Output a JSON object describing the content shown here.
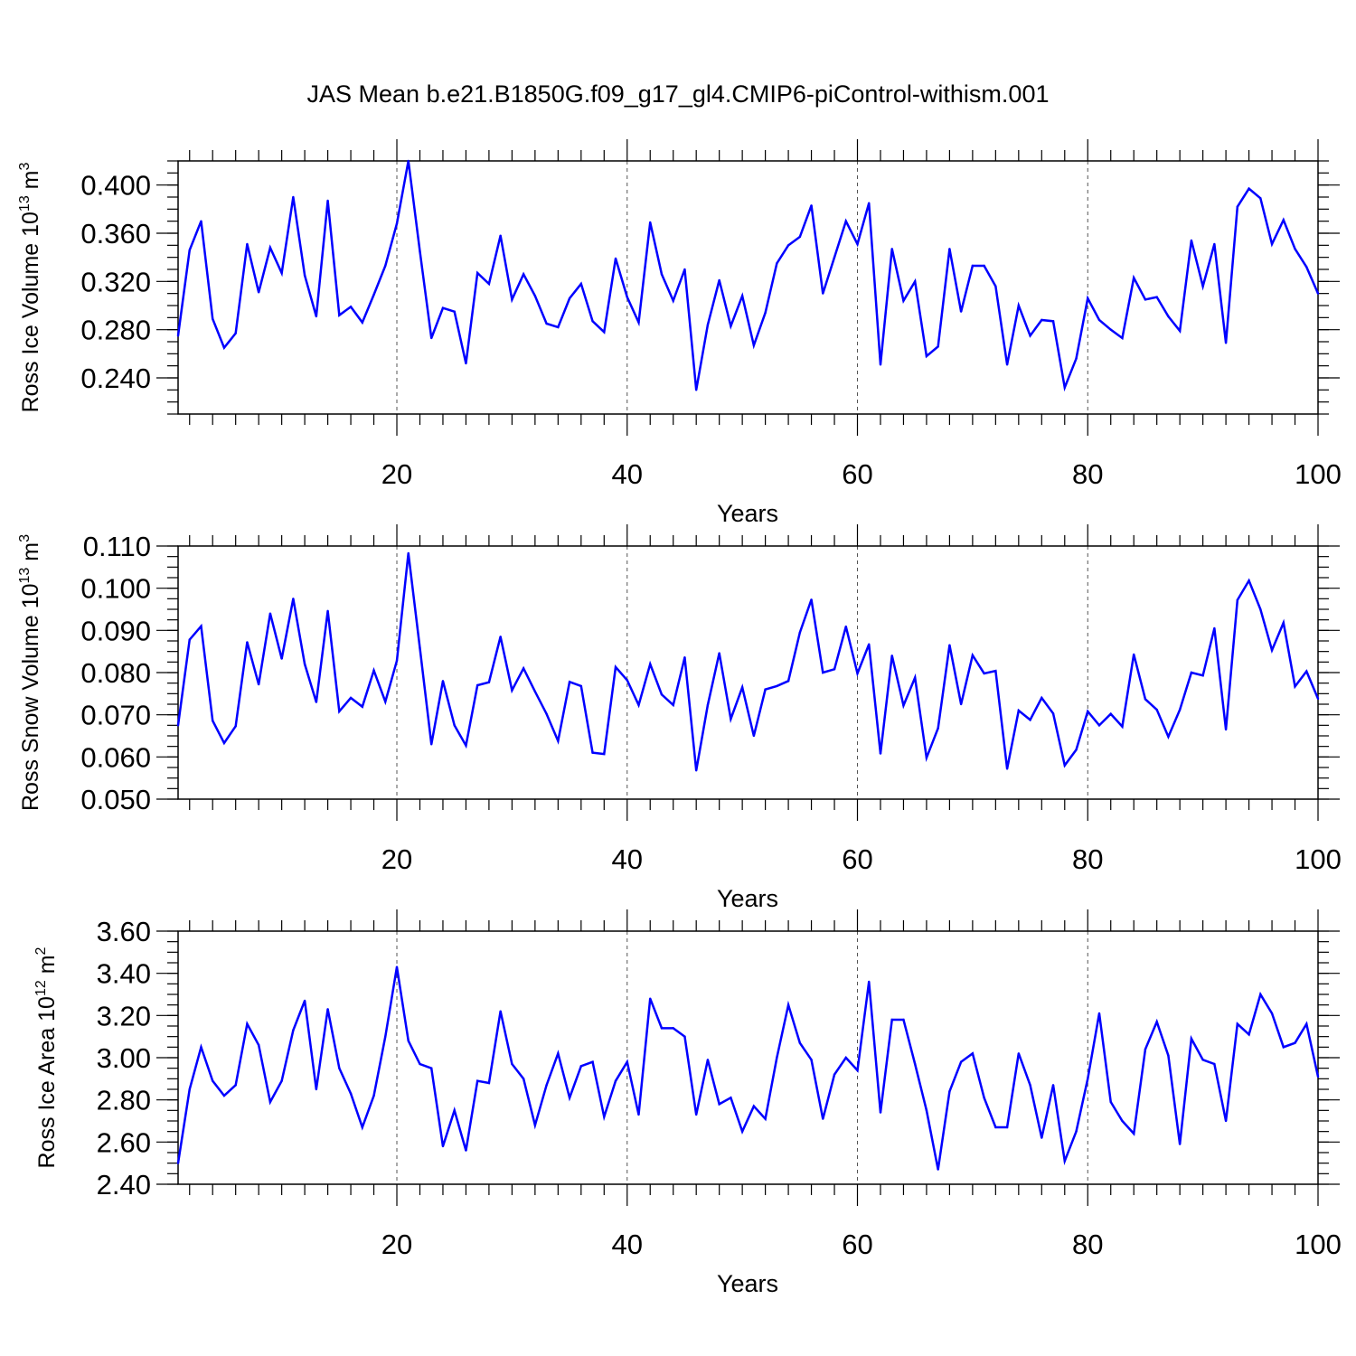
{
  "title": "JAS Mean b.e21.B1850G.f09_g17_gl4.CMIP6-piControl-withism.001",
  "colors": {
    "line": "#0000ff",
    "axis": "#000000",
    "grid": "#555555"
  },
  "chart_data": [
    {
      "type": "line",
      "name": "ross-ice-volume",
      "ylabel": {
        "text": "Ross Ice Volume 10",
        "exponent": "13",
        "unit": " m",
        "unit_exponent": "3"
      },
      "xlabel": "Years",
      "xlim": [
        1,
        100
      ],
      "ylim": [
        0.21,
        0.42
      ],
      "xticks": [
        20,
        40,
        60,
        80,
        100
      ],
      "xtick_labels": [
        "20",
        "40",
        "60",
        "80",
        "100"
      ],
      "yticks": [
        0.24,
        0.28,
        0.32,
        0.36,
        0.4
      ],
      "ytick_labels": [
        "0.240",
        "0.280",
        "0.320",
        "0.360",
        "0.400"
      ],
      "yminor_step": 0.01,
      "grid_x": true,
      "series": [
        {
          "name": "Ross Ice Volume",
          "x": [
            1,
            2,
            3,
            4,
            5,
            6,
            7,
            8,
            9,
            10,
            11,
            12,
            13,
            14,
            15,
            16,
            17,
            18,
            19,
            20,
            21,
            22,
            23,
            24,
            25,
            26,
            27,
            28,
            29,
            30,
            31,
            32,
            33,
            34,
            35,
            36,
            37,
            38,
            39,
            40,
            41,
            42,
            43,
            44,
            45,
            46,
            47,
            48,
            49,
            50,
            51,
            52,
            53,
            54,
            55,
            56,
            57,
            58,
            59,
            60,
            61,
            62,
            63,
            64,
            65,
            66,
            67,
            68,
            69,
            70,
            71,
            72,
            73,
            74,
            75,
            76,
            77,
            78,
            79,
            80,
            81,
            82,
            83,
            84,
            85,
            86,
            87,
            88,
            89,
            90,
            91,
            92,
            93,
            94,
            95,
            96,
            97,
            98,
            99,
            100
          ],
          "values": [
            0.275,
            0.346,
            0.37,
            0.289,
            0.265,
            0.277,
            0.351,
            0.311,
            0.348,
            0.327,
            0.39,
            0.325,
            0.291,
            0.387,
            0.292,
            0.299,
            0.286,
            0.309,
            0.333,
            0.368,
            0.42,
            0.345,
            0.273,
            0.298,
            0.295,
            0.252,
            0.327,
            0.318,
            0.358,
            0.305,
            0.326,
            0.308,
            0.285,
            0.282,
            0.306,
            0.318,
            0.287,
            0.278,
            0.339,
            0.307,
            0.286,
            0.369,
            0.326,
            0.304,
            0.33,
            0.23,
            0.284,
            0.321,
            0.283,
            0.308,
            0.267,
            0.294,
            0.335,
            0.35,
            0.357,
            0.383,
            0.31,
            0.34,
            0.37,
            0.351,
            0.385,
            0.251,
            0.347,
            0.304,
            0.32,
            0.258,
            0.266,
            0.347,
            0.295,
            0.333,
            0.333,
            0.316,
            0.251,
            0.3,
            0.275,
            0.288,
            0.287,
            0.232,
            0.256,
            0.306,
            0.288,
            0.28,
            0.273,
            0.323,
            0.305,
            0.307,
            0.291,
            0.279,
            0.354,
            0.316,
            0.351,
            0.269,
            0.382,
            0.397,
            0.389,
            0.351,
            0.371,
            0.347,
            0.332,
            0.31
          ]
        }
      ]
    },
    {
      "type": "line",
      "name": "ross-snow-volume",
      "ylabel": {
        "text": "Ross Snow Volume 10",
        "exponent": "13",
        "unit": " m",
        "unit_exponent": "3"
      },
      "xlabel": "Years",
      "xlim": [
        1,
        100
      ],
      "ylim": [
        0.05,
        0.11
      ],
      "xticks": [
        20,
        40,
        60,
        80,
        100
      ],
      "xtick_labels": [
        "20",
        "40",
        "60",
        "80",
        "100"
      ],
      "yticks": [
        0.05,
        0.06,
        0.07,
        0.08,
        0.09,
        0.1,
        0.11
      ],
      "ytick_labels": [
        "0.050",
        "0.060",
        "0.070",
        "0.080",
        "0.090",
        "0.100",
        "0.110"
      ],
      "yminor_step": 0.0025,
      "grid_x": true,
      "series": [
        {
          "name": "Ross Snow Volume",
          "x": [
            1,
            2,
            3,
            4,
            5,
            6,
            7,
            8,
            9,
            10,
            11,
            12,
            13,
            14,
            15,
            16,
            17,
            18,
            19,
            20,
            21,
            22,
            23,
            24,
            25,
            26,
            27,
            28,
            29,
            30,
            31,
            32,
            33,
            34,
            35,
            36,
            37,
            38,
            39,
            40,
            41,
            42,
            43,
            44,
            45,
            46,
            47,
            48,
            49,
            50,
            51,
            52,
            53,
            54,
            55,
            56,
            57,
            58,
            59,
            60,
            61,
            62,
            63,
            64,
            65,
            66,
            67,
            68,
            69,
            70,
            71,
            72,
            73,
            74,
            75,
            76,
            77,
            78,
            79,
            80,
            81,
            82,
            83,
            84,
            85,
            86,
            87,
            88,
            89,
            90,
            91,
            92,
            93,
            94,
            95,
            96,
            97,
            98,
            99,
            100
          ],
          "values": [
            0.0675,
            0.0878,
            0.091,
            0.0686,
            0.0633,
            0.0673,
            0.0872,
            0.0772,
            0.094,
            0.0833,
            0.0975,
            0.082,
            0.073,
            0.0946,
            0.0708,
            0.074,
            0.0719,
            0.0805,
            0.0731,
            0.0828,
            0.1083,
            0.0858,
            0.063,
            0.078,
            0.0675,
            0.0627,
            0.077,
            0.0777,
            0.0885,
            0.0758,
            0.081,
            0.0755,
            0.0702,
            0.0638,
            0.0778,
            0.0768,
            0.061,
            0.0607,
            0.0813,
            0.0782,
            0.0723,
            0.082,
            0.0748,
            0.0723,
            0.0836,
            0.0568,
            0.0723,
            0.0846,
            0.069,
            0.0765,
            0.065,
            0.076,
            0.0768,
            0.078,
            0.0895,
            0.0973,
            0.08,
            0.0808,
            0.0909,
            0.0798,
            0.0867,
            0.0608,
            0.084,
            0.0722,
            0.0788,
            0.0598,
            0.0668,
            0.0865,
            0.0725,
            0.0841,
            0.0798,
            0.0804,
            0.0572,
            0.071,
            0.0688,
            0.074,
            0.0703,
            0.058,
            0.0617,
            0.0708,
            0.0675,
            0.0702,
            0.0672,
            0.0843,
            0.0737,
            0.0712,
            0.0648,
            0.0712,
            0.08,
            0.0793,
            0.0905,
            0.0665,
            0.0972,
            0.1018,
            0.095,
            0.0853,
            0.0918,
            0.0767,
            0.0803,
            0.0738
          ]
        }
      ]
    },
    {
      "type": "line",
      "name": "ross-ice-area",
      "ylabel": {
        "text": "Ross Ice Area 10",
        "exponent": "12",
        "unit": " m",
        "unit_exponent": "2"
      },
      "xlabel": "Years",
      "xlim": [
        1,
        100
      ],
      "ylim": [
        2.4,
        3.6
      ],
      "xticks": [
        20,
        40,
        60,
        80,
        100
      ],
      "xtick_labels": [
        "20",
        "40",
        "60",
        "80",
        "100"
      ],
      "yticks": [
        2.4,
        2.6,
        2.8,
        3.0,
        3.2,
        3.4,
        3.6
      ],
      "ytick_labels": [
        "2.40",
        "2.60",
        "2.80",
        "3.00",
        "3.20",
        "3.40",
        "3.60"
      ],
      "yminor_step": 0.05,
      "grid_x": true,
      "series": [
        {
          "name": "Ross Ice Area",
          "x": [
            1,
            2,
            3,
            4,
            5,
            6,
            7,
            8,
            9,
            10,
            11,
            12,
            13,
            14,
            15,
            16,
            17,
            18,
            19,
            20,
            21,
            22,
            23,
            24,
            25,
            26,
            27,
            28,
            29,
            30,
            31,
            32,
            33,
            34,
            35,
            36,
            37,
            38,
            39,
            40,
            41,
            42,
            43,
            44,
            45,
            46,
            47,
            48,
            49,
            50,
            51,
            52,
            53,
            54,
            55,
            56,
            57,
            58,
            59,
            60,
            61,
            62,
            63,
            64,
            65,
            66,
            67,
            68,
            69,
            70,
            71,
            72,
            73,
            74,
            75,
            76,
            77,
            78,
            79,
            80,
            81,
            82,
            83,
            84,
            85,
            86,
            87,
            88,
            89,
            90,
            91,
            92,
            93,
            94,
            95,
            96,
            97,
            98,
            99,
            100
          ],
          "values": [
            2.5,
            2.85,
            3.05,
            2.89,
            2.82,
            2.87,
            3.16,
            3.06,
            2.79,
            2.89,
            3.13,
            3.27,
            2.85,
            3.23,
            2.95,
            2.83,
            2.67,
            2.82,
            3.1,
            3.43,
            3.08,
            2.97,
            2.95,
            2.58,
            2.75,
            2.56,
            2.89,
            2.88,
            3.22,
            2.97,
            2.9,
            2.68,
            2.87,
            3.02,
            2.81,
            2.96,
            2.98,
            2.72,
            2.89,
            2.98,
            2.73,
            3.28,
            3.14,
            3.14,
            3.1,
            2.73,
            2.99,
            2.78,
            2.81,
            2.65,
            2.77,
            2.71,
            3.0,
            3.25,
            3.07,
            2.99,
            2.71,
            2.92,
            3.0,
            2.94,
            3.36,
            2.74,
            3.18,
            3.18,
            2.97,
            2.75,
            2.47,
            2.84,
            2.98,
            3.02,
            2.81,
            2.67,
            2.67,
            3.02,
            2.87,
            2.62,
            2.87,
            2.51,
            2.65,
            2.9,
            3.21,
            2.79,
            2.7,
            2.64,
            3.04,
            3.17,
            3.01,
            2.59,
            3.09,
            2.99,
            2.97,
            2.7,
            3.16,
            3.11,
            3.3,
            3.21,
            3.05,
            3.07,
            3.16,
            2.91
          ]
        }
      ]
    }
  ]
}
